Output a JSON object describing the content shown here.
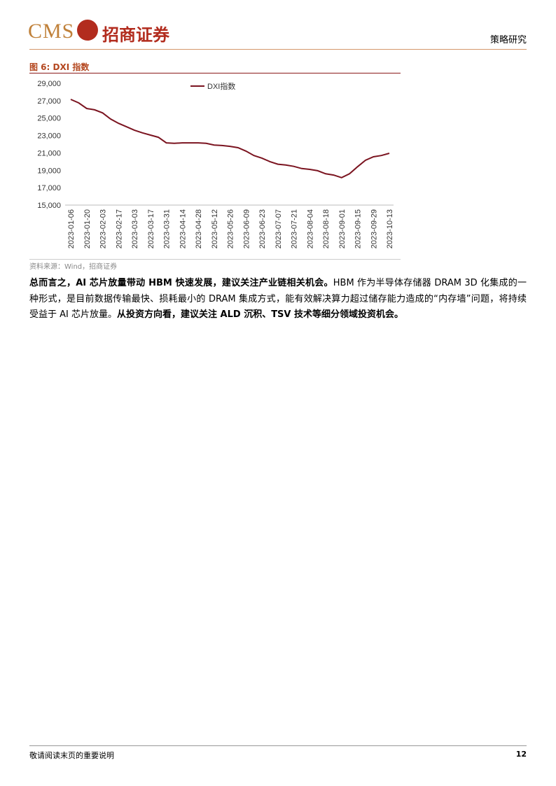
{
  "header": {
    "logo_text": "CMS",
    "logo_cn": "招商证券",
    "section": "策略研究"
  },
  "figure": {
    "caption": "图 6: DXI 指数",
    "source": "资料来源：Wind，招商证券"
  },
  "chart_data": {
    "type": "line",
    "categories": [
      "2023-01-06",
      null,
      "2023-01-20",
      null,
      "2023-02-03",
      null,
      "2023-02-17",
      null,
      "2023-03-03",
      null,
      "2023-03-17",
      null,
      "2023-03-31",
      null,
      "2023-04-14",
      null,
      "2023-04-28",
      null,
      "2023-05-12",
      null,
      "2023-05-26",
      null,
      "2023-06-09",
      null,
      "2023-06-23",
      null,
      "2023-07-07",
      null,
      "2023-07-21",
      null,
      "2023-08-04",
      null,
      "2023-08-18",
      null,
      "2023-09-01",
      null,
      "2023-09-15",
      null,
      "2023-09-29",
      null,
      "2023-10-13"
    ],
    "series": [
      {
        "name": "DXI指数",
        "color": "#7b1420",
        "values": [
          27150,
          26750,
          26100,
          25950,
          25600,
          24900,
          24400,
          24000,
          23600,
          23300,
          23050,
          22800,
          22150,
          22100,
          22150,
          22150,
          22150,
          22100,
          21900,
          21850,
          21750,
          21600,
          21200,
          20700,
          20400,
          20000,
          19700,
          19600,
          19450,
          19200,
          19100,
          18950,
          18600,
          18450,
          18150,
          18600,
          19400,
          20150,
          20550,
          20700,
          20950
        ]
      }
    ],
    "ylim": [
      15000,
      29000
    ],
    "yticks": [
      {
        "value": 15000,
        "label": "15,000"
      },
      {
        "value": 17000,
        "label": "17,000"
      },
      {
        "value": 19000,
        "label": "19,000"
      },
      {
        "value": 21000,
        "label": "21,000"
      },
      {
        "value": 23000,
        "label": "23,000"
      },
      {
        "value": 25000,
        "label": "25,000"
      },
      {
        "value": 27000,
        "label": "27,000"
      },
      {
        "value": 29000,
        "label": "29,000"
      }
    ],
    "grid": false,
    "legend": "top"
  },
  "body": {
    "paragraph": {
      "runs": [
        {
          "text": "总而言之，AI 芯片放量带动 HBM 快速发展，建议关注产业链相关机会。",
          "bold": true
        },
        {
          "text": "HBM 作为半导体存储器 DRAM 3D 化集成的一种形式，是目前数据传输最快、损耗最小的 DRAM 集成方式，能有效解决算力超过储存能力造成的“内存墙”问题，将持续受益于 AI 芯片放量。",
          "bold": false
        },
        {
          "text": "从投资方向看，建议关注 ALD 沉积、TSV 技术等细分领域投资机会。",
          "bold": true
        }
      ]
    }
  },
  "footer": {
    "note": "敬请阅读末页的重要说明",
    "page": "12"
  }
}
